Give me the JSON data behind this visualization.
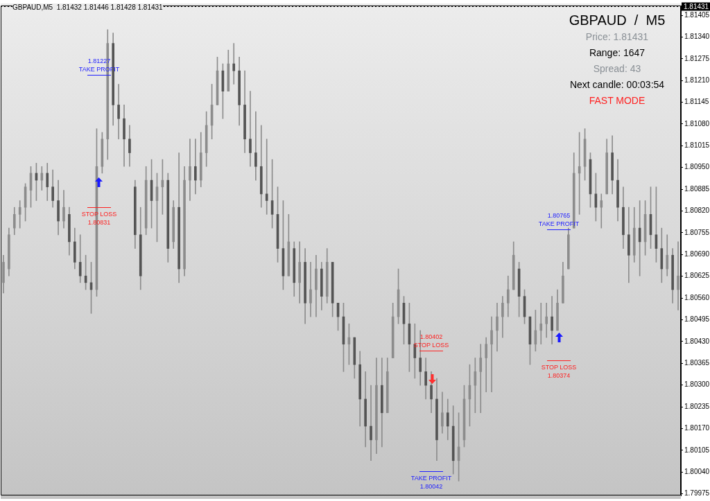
{
  "chart_data": {
    "type": "candlestick",
    "title": "GBPAUD,M5  1.81432 1.81446 1.81428 1.81431",
    "color": "#8c8c8c",
    "categories": [
      null,
      null,
      null,
      null,
      null,
      null,
      null,
      null,
      null,
      null,
      null,
      null,
      null,
      null,
      null,
      null,
      null,
      null,
      null,
      null,
      null,
      null,
      null,
      null,
      null,
      null,
      null,
      null,
      null,
      null,
      null,
      null,
      null,
      null,
      null,
      null,
      null,
      null,
      null,
      null,
      null,
      null,
      null,
      null,
      null,
      null,
      null,
      null,
      null,
      null,
      null,
      null,
      null,
      null,
      null,
      null,
      null,
      null,
      null,
      null,
      null,
      null,
      null,
      null,
      null,
      null,
      null,
      null,
      null,
      null,
      null,
      null,
      null,
      null,
      null,
      null,
      null,
      null,
      null,
      null,
      null,
      null,
      null,
      null,
      null,
      null,
      null,
      null,
      null,
      null,
      null,
      null,
      null,
      null,
      null,
      null,
      null,
      null,
      null,
      null,
      null,
      null,
      null,
      null,
      null,
      null,
      null,
      null,
      null,
      null,
      null,
      null,
      null,
      null,
      null,
      null,
      null,
      null,
      null,
      null,
      null,
      null,
      null,
      null
    ],
    "ohlc": [
      [
        1.80606,
        1.80688,
        1.80575,
        1.80667
      ],
      [
        1.80647,
        1.80769,
        1.80626,
        1.80749
      ],
      [
        1.80769,
        1.80831,
        1.80749,
        1.8081
      ],
      [
        1.8081,
        1.80851,
        1.80769,
        1.80831
      ],
      [
        1.80831,
        1.80902,
        1.8079,
        1.80892
      ],
      [
        1.80882,
        1.80953,
        1.80831,
        1.80933
      ],
      [
        1.80933,
        1.80963,
        1.80851,
        1.80912
      ],
      [
        1.80912,
        1.80953,
        1.80882,
        1.80933
      ],
      [
        1.80933,
        1.80963,
        1.80851,
        1.80892
      ],
      [
        1.80892,
        1.80943,
        1.80831,
        1.80851
      ],
      [
        1.80851,
        1.80912,
        1.80749,
        1.8079
      ],
      [
        1.8079,
        1.80882,
        1.80769,
        1.80831
      ],
      [
        1.8081,
        1.80831,
        1.80688,
        1.80728
      ],
      [
        1.80728,
        1.80769,
        1.80647,
        1.80667
      ],
      [
        1.80667,
        1.80749,
        1.80606,
        1.80626
      ],
      [
        1.80626,
        1.80688,
        1.80585,
        1.80606
      ],
      [
        1.80606,
        1.80667,
        1.80514,
        1.80585
      ],
      [
        1.80585,
        1.81066,
        1.80565,
        1.80953
      ],
      [
        1.80953,
        1.81055,
        1.80933,
        1.81035
      ],
      [
        1.81035,
        1.81362,
        1.80974,
        1.81321
      ],
      [
        1.81321,
        1.81352,
        1.81076,
        1.81137
      ],
      [
        1.81137,
        1.81199,
        1.81035,
        1.81096
      ],
      [
        1.81096,
        1.81137,
        1.80953,
        1.81035
      ],
      [
        1.81035,
        1.81076,
        1.80953,
        1.80994
      ],
      [
        1.80892,
        1.80912,
        1.80708,
        1.80749
      ],
      [
        1.80749,
        1.80831,
        1.80585,
        1.80626
      ],
      [
        1.80769,
        1.80953,
        1.80749,
        1.80912
      ],
      [
        1.80912,
        1.80974,
        1.80769,
        1.80851
      ],
      [
        1.80851,
        1.80933,
        1.80728,
        1.80892
      ],
      [
        1.80892,
        1.80974,
        1.8081,
        1.80912
      ],
      [
        1.80912,
        1.80933,
        1.80667,
        1.80708
      ],
      [
        1.80728,
        1.80851,
        1.80708,
        1.80831
      ],
      [
        1.80831,
        1.80994,
        1.80606,
        1.80647
      ],
      [
        1.80647,
        1.80953,
        1.80626,
        1.80912
      ],
      [
        1.80912,
        1.81035,
        1.80851,
        1.80953
      ],
      [
        1.80953,
        1.81035,
        1.80871,
        1.80912
      ],
      [
        1.80912,
        1.81055,
        1.80892,
        1.80994
      ],
      [
        1.80994,
        1.81117,
        1.80953,
        1.81076
      ],
      [
        1.81076,
        1.81199,
        1.81035,
        1.81137
      ],
      [
        1.81137,
        1.8128,
        1.81137,
        1.81239
      ],
      [
        1.81239,
        1.8126,
        1.81096,
        1.81178
      ],
      [
        1.81178,
        1.81301,
        1.81178,
        1.8126
      ],
      [
        1.8126,
        1.81321,
        1.81199,
        1.81239
      ],
      [
        1.81239,
        1.8128,
        1.81076,
        1.81137
      ],
      [
        1.81137,
        1.81239,
        1.80994,
        1.81035
      ],
      [
        1.81035,
        1.81178,
        1.80953,
        1.80994
      ],
      [
        1.80994,
        1.81117,
        1.80912,
        1.80953
      ],
      [
        1.80953,
        1.81076,
        1.80831,
        1.80871
      ],
      [
        1.80871,
        1.81035,
        1.8081,
        1.80851
      ],
      [
        1.80851,
        1.80974,
        1.80769,
        1.8081
      ],
      [
        1.8081,
        1.80892,
        1.80667,
        1.80708
      ],
      [
        1.80708,
        1.80851,
        1.80585,
        1.80626
      ],
      [
        1.80626,
        1.8081,
        1.80626,
        1.80728
      ],
      [
        1.80708,
        1.80728,
        1.80565,
        1.80606
      ],
      [
        1.80606,
        1.80728,
        1.80545,
        1.80667
      ],
      [
        1.80667,
        1.80708,
        1.80483,
        1.80545
      ],
      [
        1.80545,
        1.80667,
        1.80504,
        1.80585
      ],
      [
        1.80585,
        1.80688,
        1.80504,
        1.80647
      ],
      [
        1.80647,
        1.80667,
        1.80524,
        1.80565
      ],
      [
        1.80565,
        1.80708,
        1.80545,
        1.80667
      ],
      [
        1.80667,
        1.80667,
        1.80504,
        1.80545
      ],
      [
        1.80545,
        1.80545,
        1.80463,
        1.80504
      ],
      [
        1.80504,
        1.80545,
        1.8034,
        1.80422
      ],
      [
        1.80422,
        1.80483,
        1.80361,
        1.80442
      ],
      [
        1.80442,
        1.80442,
        1.8032,
        1.80361
      ],
      [
        1.80361,
        1.80401,
        1.80177,
        1.80258
      ],
      [
        1.80258,
        1.8034,
        1.80115,
        1.80177
      ],
      [
        1.80177,
        1.80299,
        1.80074,
        1.80136
      ],
      [
        1.80136,
        1.80381,
        1.80095,
        1.80299
      ],
      [
        1.80299,
        1.80381,
        1.80115,
        1.80217
      ],
      [
        1.80217,
        1.80381,
        1.80217,
        1.8034
      ],
      [
        1.80381,
        1.80545,
        1.80381,
        1.80504
      ],
      [
        1.80504,
        1.80647,
        1.80483,
        1.80585
      ],
      [
        1.80545,
        1.80565,
        1.80422,
        1.80483
      ],
      [
        1.80483,
        1.80545,
        1.8034,
        1.80422
      ],
      [
        1.80422,
        1.80483,
        1.8032,
        1.80381
      ],
      [
        1.80381,
        1.80463,
        1.80299,
        1.8034
      ],
      [
        1.8034,
        1.80381,
        1.80258,
        1.80299
      ],
      [
        1.80299,
        1.8034,
        1.80217,
        1.80258
      ],
      [
        1.80258,
        1.8032,
        1.80074,
        1.80136
      ],
      [
        1.80177,
        1.80279,
        1.80156,
        1.80217
      ],
      [
        1.80217,
        1.80258,
        1.80136,
        1.80177
      ],
      [
        1.80177,
        1.80238,
        1.80034,
        1.80074
      ],
      [
        1.80074,
        1.80217,
        1.80013,
        1.80115
      ],
      [
        1.80136,
        1.80299,
        1.80115,
        1.80258
      ],
      [
        1.80258,
        1.80361,
        1.80177,
        1.80299
      ],
      [
        1.80299,
        1.80381,
        1.80217,
        1.8034
      ],
      [
        1.8034,
        1.80422,
        1.80217,
        1.80381
      ],
      [
        1.80381,
        1.80442,
        1.80279,
        1.80422
      ],
      [
        1.80422,
        1.80504,
        1.80279,
        1.80463
      ],
      [
        1.80463,
        1.80545,
        1.80401,
        1.80504
      ],
      [
        1.80504,
        1.80565,
        1.80442,
        1.80545
      ],
      [
        1.80545,
        1.80626,
        1.80504,
        1.80585
      ],
      [
        1.80585,
        1.80728,
        1.80585,
        1.80688
      ],
      [
        1.80647,
        1.80667,
        1.80504,
        1.80565
      ],
      [
        1.80565,
        1.80585,
        1.80483,
        1.80504
      ],
      [
        1.80504,
        1.80504,
        1.80361,
        1.80422
      ],
      [
        1.80422,
        1.80524,
        1.80401,
        1.80463
      ],
      [
        1.80463,
        1.80545,
        1.80422,
        1.80483
      ],
      [
        1.80483,
        1.80545,
        1.80442,
        1.80504
      ],
      [
        1.80504,
        1.80565,
        1.80422,
        1.80463
      ],
      [
        1.80463,
        1.80585,
        1.80463,
        1.80545
      ],
      [
        1.80545,
        1.80667,
        1.80545,
        1.80626
      ],
      [
        1.80647,
        1.80769,
        1.80647,
        1.80749
      ],
      [
        1.80769,
        1.80994,
        1.80769,
        1.80933
      ],
      [
        1.80933,
        1.81055,
        1.8081,
        1.80953
      ],
      [
        1.80953,
        1.81066,
        1.80912,
        1.81035
      ],
      [
        1.80974,
        1.80994,
        1.80831,
        1.80871
      ],
      [
        1.80871,
        1.80933,
        1.8079,
        1.80831
      ],
      [
        1.80831,
        1.80871,
        1.80769,
        1.80851
      ],
      [
        1.80871,
        1.81035,
        1.80871,
        1.80994
      ],
      [
        1.80994,
        1.81045,
        1.80871,
        1.80912
      ],
      [
        1.80912,
        1.80974,
        1.8079,
        1.80831
      ],
      [
        1.80831,
        1.80892,
        1.80708,
        1.80749
      ],
      [
        1.80749,
        1.80831,
        1.80606,
        1.80688
      ],
      [
        1.80688,
        1.80831,
        1.80667,
        1.80769
      ],
      [
        1.80769,
        1.80851,
        1.80626,
        1.80728
      ],
      [
        1.80728,
        1.80851,
        1.80688,
        1.8081
      ],
      [
        1.8081,
        1.80892,
        1.80708,
        1.80749
      ],
      [
        1.80749,
        1.80892,
        1.80667,
        1.80708
      ],
      [
        1.80708,
        1.80769,
        1.80606,
        1.80647
      ],
      [
        1.80647,
        1.80749,
        1.80626,
        1.80688
      ],
      [
        1.80688,
        1.80708,
        1.80545,
        1.80585
      ],
      [
        1.80585,
        1.80728,
        1.80524,
        1.80626
      ]
    ],
    "annotations": [
      "GBPAUD  /  M5",
      "Price: 1.81431",
      "Range: 1647",
      "Spread: 43",
      "Next candle: 00:03:54",
      "FAST MODE"
    ],
    "ref_lines": [
      {
        "axis": "y",
        "value": 1.81431,
        "label": "1.81431",
        "color": "#000000"
      },
      {
        "axis": "y",
        "value": 1.81227,
        "label": "1.81227\nTAKE PROFIT",
        "color": "#2020ff"
      },
      {
        "axis": "y",
        "value": 1.80831,
        "label": "STOP LOSS\n1.80831",
        "color": "#ff2020"
      },
      {
        "axis": "y",
        "value": 1.80402,
        "label": "1.80402\nSTOP LOSS",
        "color": "#ff2020"
      },
      {
        "axis": "y",
        "value": 1.80042,
        "label": "TAKE PROFIT\n1.80042",
        "color": "#2020ff"
      },
      {
        "axis": "y",
        "value": 1.80765,
        "label": "1.80765\nTAKE PROFIT",
        "color": "#2020ff"
      },
      {
        "axis": "y",
        "value": 1.80374,
        "label": "STOP LOSS\n1.80374",
        "color": "#ff2020"
      }
    ],
    "colors": [
      "#8c8c8c",
      "#8c8c8c",
      "#8c8c8c",
      "#8c8c8c",
      "#8c8c8c",
      "#8c8c8c",
      "#545454",
      "#8c8c8c",
      "#545454",
      "#545454",
      "#545454",
      "#8c8c8c",
      "#545454",
      "#545454",
      "#545454",
      "#545454",
      "#545454",
      "#8c8c8c",
      "#8c8c8c",
      "#8c8c8c",
      "#545454",
      "#545454",
      "#545454",
      "#545454",
      "#545454",
      "#545454",
      "#8c8c8c",
      "#545454",
      "#8c8c8c",
      "#8c8c8c",
      "#545454",
      "#8c8c8c",
      "#545454",
      "#8c8c8c",
      "#8c8c8c",
      "#545454",
      "#8c8c8c",
      "#8c8c8c",
      "#8c8c8c",
      "#8c8c8c",
      "#545454",
      "#8c8c8c",
      "#545454",
      "#545454",
      "#545454",
      "#545454",
      "#545454",
      "#545454",
      "#545454",
      "#545454",
      "#545454",
      "#545454",
      "#8c8c8c",
      "#545454",
      "#8c8c8c",
      "#545454",
      "#8c8c8c",
      "#8c8c8c",
      "#545454",
      "#8c8c8c",
      "#545454",
      "#545454",
      "#545454",
      "#8c8c8c",
      "#545454",
      "#545454",
      "#545454",
      "#545454",
      "#8c8c8c",
      "#545454",
      "#8c8c8c",
      "#8c8c8c",
      "#8c8c8c",
      "#545454",
      "#545454",
      "#545454",
      "#545454",
      "#545454",
      "#545454",
      "#545454",
      "#8c8c8c",
      "#545454",
      "#545454",
      "#8c8c8c",
      "#8c8c8c",
      "#8c8c8c",
      "#8c8c8c",
      "#8c8c8c",
      "#8c8c8c",
      "#8c8c8c",
      "#8c8c8c",
      "#8c8c8c",
      "#8c8c8c",
      "#8c8c8c",
      "#545454",
      "#545454",
      "#545454",
      "#8c8c8c",
      "#8c8c8c",
      "#8c8c8c",
      "#545454",
      "#8c8c8c",
      "#8c8c8c",
      "#8c8c8c",
      "#8c8c8c",
      "#8c8c8c",
      "#8c8c8c",
      "#545454",
      "#545454",
      "#8c8c8c",
      "#8c8c8c",
      "#545454",
      "#545454",
      "#545454",
      "#545454",
      "#8c8c8c",
      "#545454",
      "#8c8c8c",
      "#545454",
      "#545454",
      "#545454",
      "#8c8c8c",
      "#545454",
      "#8c8c8c"
    ],
    "ylim": [
      1.7997,
      1.81434
    ],
    "tick_labels": "y",
    "yticks": [
      {
        "value": 1.81405,
        "label": "1.81405"
      },
      {
        "value": 1.8134,
        "label": "1.81340"
      },
      {
        "value": 1.81275,
        "label": "1.81275"
      },
      {
        "value": 1.8121,
        "label": "1.81210"
      },
      {
        "value": 1.81145,
        "label": "1.81145"
      },
      {
        "value": 1.8108,
        "label": "1.81080"
      },
      {
        "value": 1.81015,
        "label": "1.81015"
      },
      {
        "value": 1.8095,
        "label": "1.80950"
      },
      {
        "value": 1.80885,
        "label": "1.80885"
      },
      {
        "value": 1.8082,
        "label": "1.80820"
      },
      {
        "value": 1.80755,
        "label": "1.80755"
      },
      {
        "value": 1.8069,
        "label": "1.80690"
      },
      {
        "value": 1.80625,
        "label": "1.80625"
      },
      {
        "value": 1.8056,
        "label": "1.80560"
      },
      {
        "value": 1.80495,
        "label": "1.80495"
      },
      {
        "value": 1.8043,
        "label": "1.80430"
      },
      {
        "value": 1.80365,
        "label": "1.80365"
      },
      {
        "value": 1.803,
        "label": "1.80300"
      },
      {
        "value": 1.80235,
        "label": "1.80235"
      },
      {
        "value": 1.8017,
        "label": "1.80170"
      },
      {
        "value": 1.80105,
        "label": "1.80105"
      },
      {
        "value": 1.8004,
        "label": "1.80040"
      },
      {
        "value": 1.79975,
        "label": "1.79975"
      }
    ]
  }
}
